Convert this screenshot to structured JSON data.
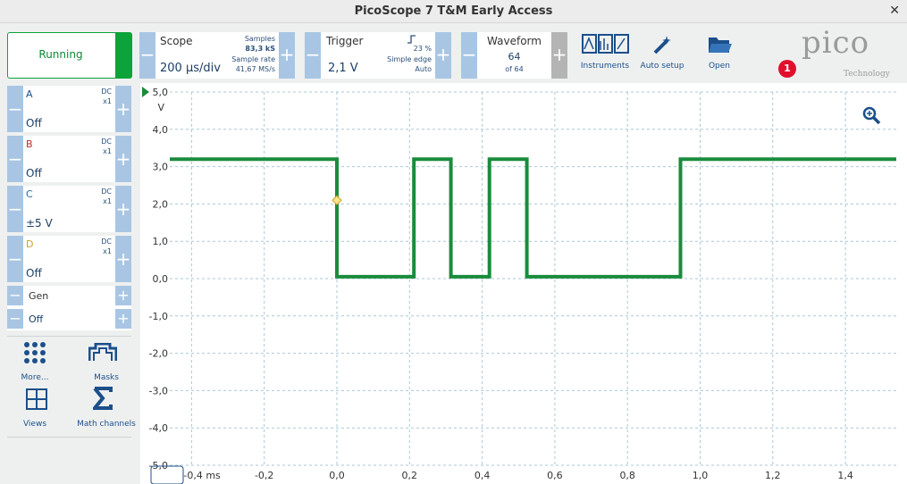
{
  "window": {
    "title": "PicoScope 7 T&M Early Access",
    "close": "✕"
  },
  "toolbar": {
    "status": "Running",
    "scope": {
      "label": "Scope",
      "value": "200 µs/div",
      "samples_label": "Samples",
      "samples": "83,3 kS",
      "rate_label": "Sample rate",
      "rate": "41,67 MS/s"
    },
    "trigger": {
      "label": "Trigger",
      "value": "2,1 V",
      "percent": "23 %",
      "type": "Simple edge",
      "mode": "Auto"
    },
    "waveform": {
      "label": "Waveform",
      "value": "64",
      "of": "of 64"
    },
    "buttons": [
      "Instruments",
      "Auto setup",
      "Open"
    ],
    "notification": "1",
    "logo": "pico",
    "logo_sub": "Technology"
  },
  "channels": [
    {
      "name": "A",
      "coupling": "DC",
      "probe": "x1",
      "range": "Off",
      "color": "#1c4f8a"
    },
    {
      "name": "B",
      "coupling": "DC",
      "probe": "x1",
      "range": "Off",
      "color": "#c0262d"
    },
    {
      "name": "C",
      "coupling": "DC",
      "probe": "x1",
      "range": "±5 V",
      "color": "#2a6c9e"
    },
    {
      "name": "D",
      "coupling": "DC",
      "probe": "x1",
      "range": "Off",
      "color": "#c9a227"
    }
  ],
  "gen": {
    "name": "Gen",
    "value": "Off"
  },
  "tools": [
    "More...",
    "Masks",
    "Views",
    "Math channels"
  ],
  "chart_data": {
    "type": "line",
    "y_label": "V",
    "color": "#1a8c3c",
    "grid": true,
    "x": [
      -0.46,
      0,
      0,
      0.212,
      0.212,
      0.314,
      0.314,
      0.42,
      0.42,
      0.523,
      0.523,
      0.946,
      0.946,
      1.54
    ],
    "values": [
      3.2,
      3.2,
      0.05,
      0.05,
      3.2,
      3.2,
      0.05,
      0.05,
      3.2,
      3.2,
      0.05,
      0.05,
      3.2,
      3.2
    ],
    "trigger_marker": {
      "x": 0,
      "y": 2.1
    },
    "xlim": [
      -0.46,
      1.54
    ],
    "ylim": [
      -5,
      5
    ],
    "xticks": [
      {
        "value": -0.4,
        "label": "-0,4 ms"
      },
      {
        "value": -0.2,
        "label": "-0,2"
      },
      {
        "value": 0,
        "label": "0,0"
      },
      {
        "value": 0.2,
        "label": "0,2"
      },
      {
        "value": 0.4,
        "label": "0,4"
      },
      {
        "value": 0.6,
        "label": "0,6"
      },
      {
        "value": 0.8,
        "label": "0,8"
      },
      {
        "value": 1,
        "label": "1,0"
      },
      {
        "value": 1.2,
        "label": "1,2"
      },
      {
        "value": 1.4,
        "label": "1,4"
      }
    ],
    "yticks": [
      {
        "value": 5,
        "label": "5,0"
      },
      {
        "value": 4,
        "label": "4,0"
      },
      {
        "value": 3,
        "label": "3,0"
      },
      {
        "value": 2,
        "label": "2,0"
      },
      {
        "value": 1,
        "label": "1,0"
      },
      {
        "value": 0,
        "label": "0,0"
      },
      {
        "value": -1,
        "label": "-1,0"
      },
      {
        "value": -2,
        "label": "-2,0"
      },
      {
        "value": -3,
        "label": "-3,0"
      },
      {
        "value": -4,
        "label": "-4,0"
      },
      {
        "value": -5,
        "label": "-5,0"
      }
    ]
  }
}
